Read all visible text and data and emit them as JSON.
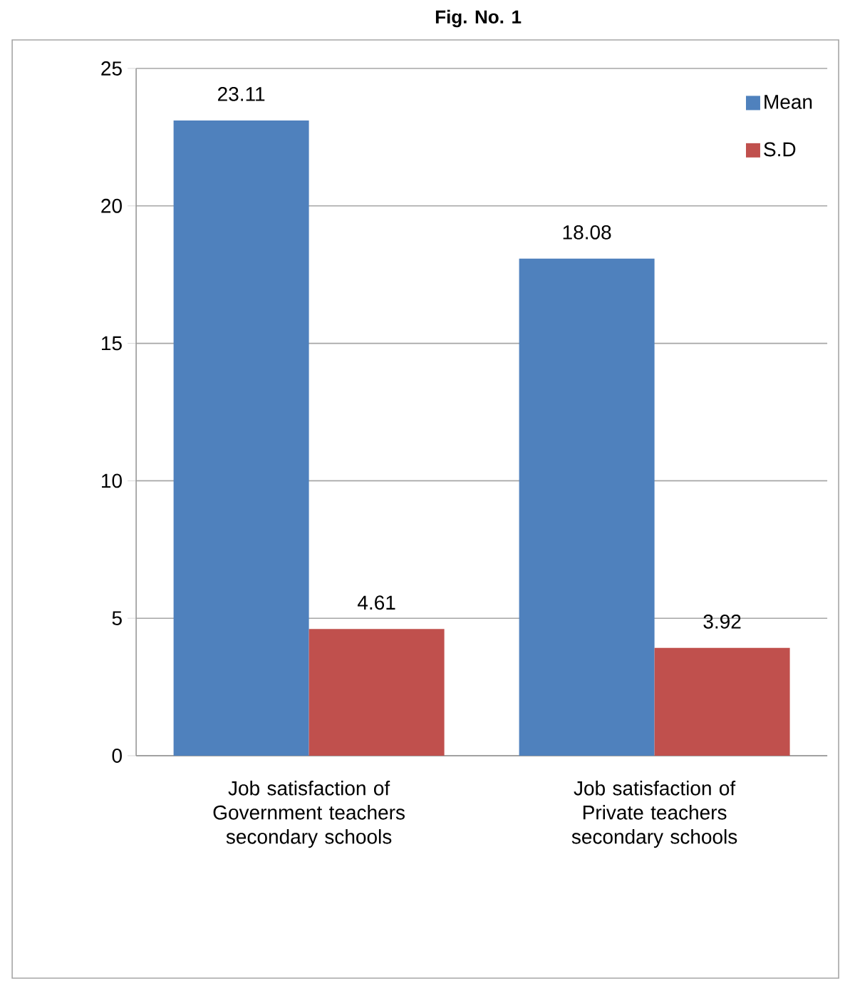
{
  "chart_data": {
    "type": "bar",
    "title": "Fig. No. 1",
    "categories": [
      "Job satisfaction of Government teachers secondary schools",
      "Job satisfaction of Private teachers secondary schools"
    ],
    "series": [
      {
        "name": "Mean",
        "color": "#4f81bd",
        "values": [
          23.11,
          18.08
        ]
      },
      {
        "name": "S.D",
        "color": "#c0504d",
        "values": [
          4.61,
          3.92
        ]
      }
    ],
    "ylim": [
      0,
      25
    ],
    "yticks": [
      0,
      5,
      10,
      15,
      20,
      25
    ],
    "grid": "y",
    "legend": "top right",
    "data_labels": true
  }
}
